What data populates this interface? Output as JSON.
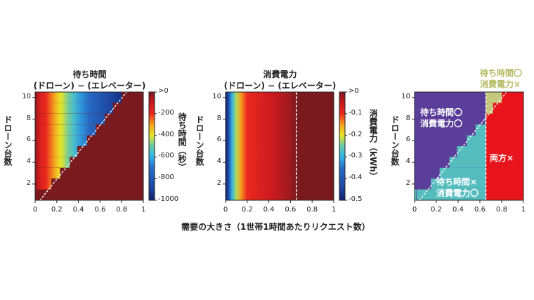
{
  "x_axis_common_label": "需要の大きさ（1世帯1時間あたりリクエスト数）",
  "chart_data": [
    {
      "id": "waiting-time",
      "type": "heatmap",
      "title_line1": "待ち時間",
      "title_line2": "(ドローン) − (エレベーター)",
      "ylabel": "ドローン台数",
      "xlabel": "需要の大きさ（1世帯1時間あたりリクエスト数）",
      "x_ticks": [
        "0",
        "0.2",
        "0.4",
        "0.6",
        "0.8",
        "1"
      ],
      "y_ticks": [
        "2",
        "4",
        "6",
        "8",
        "10"
      ],
      "xlim": [
        0,
        1
      ],
      "ylim": [
        0.5,
        10.5
      ],
      "colorbar": {
        "label": "待ち時間（秒）",
        "ticks": [
          ">0",
          "-200",
          "-400",
          "-600",
          "-800",
          "-1000"
        ],
        "range": [
          -1000,
          0
        ],
        "colormap": "jet"
      },
      "row_boundaries": {
        "description": "For each drone count n, demand x above which drone waiting time is worse (>0)",
        "drones": [
          1,
          2,
          3,
          4,
          5,
          6,
          7,
          8,
          9,
          10
        ],
        "x_threshold": [
          0.02,
          0.15,
          0.23,
          0.32,
          0.39,
          0.48,
          0.56,
          0.645,
          0.72,
          0.8
        ]
      },
      "dashed_line": {
        "from": [
          0.045,
          0.5
        ],
        "to": [
          0.845,
          10.5
        ]
      }
    },
    {
      "id": "power-consumption",
      "type": "heatmap",
      "title_line1": "消費電力",
      "title_line2": "(ドローン) − (エレベーター)",
      "ylabel": "ドローン台数",
      "xlabel": "需要の大きさ（1世帯1時間あたりリクエスト数）",
      "x_ticks": [
        "0",
        "0.2",
        "0.4",
        "0.6",
        "0.8",
        "1"
      ],
      "y_ticks": [
        "2",
        "4",
        "6",
        "8",
        "10"
      ],
      "xlim": [
        0,
        1
      ],
      "ylim": [
        0.5,
        10.5
      ],
      "colorbar": {
        "label": "消費電力（kWh）",
        "ticks": [
          ">0",
          "-0.1",
          "-0.2",
          "-0.3",
          "-0.4",
          "-0.5"
        ],
        "range": [
          -0.5,
          0
        ],
        "colormap": "jet"
      },
      "profile": {
        "description": "Power difference depends only on demand x (independent of drone count)",
        "x": [
          0.0,
          0.03,
          0.06,
          0.1,
          0.14,
          0.2,
          0.3,
          0.45,
          0.6,
          0.655,
          1.0
        ],
        "value": [
          -0.5,
          -0.42,
          -0.3,
          -0.22,
          -0.15,
          -0.1,
          -0.08,
          -0.05,
          -0.02,
          0.0,
          0.0
        ]
      },
      "dashed_vertical_x": 0.655
    },
    {
      "id": "combined-regions",
      "type": "heatmap",
      "ylabel": "ドローン台数",
      "x_ticks": [
        "0",
        "0.2",
        "0.4",
        "0.6",
        "0.8",
        "1"
      ],
      "y_ticks": [
        "2",
        "4",
        "6",
        "8",
        "10"
      ],
      "xlim": [
        0,
        1
      ],
      "ylim": [
        0.5,
        10.5
      ],
      "regions": [
        {
          "name": "both-good",
          "label_line1": "待ち時間〇",
          "label_line2": "消費電力〇",
          "color": "#5a3e9a"
        },
        {
          "name": "power-good",
          "label_line1": "待ち時間×",
          "label_line2": "消費電力〇",
          "color": "#56bdbf"
        },
        {
          "name": "wait-good",
          "label_line1": "待ち時間〇",
          "label_line2": "消費電力×",
          "color": "#c5c97e"
        },
        {
          "name": "both-bad",
          "label_line1": "両方×",
          "color": "#e8141c"
        }
      ],
      "vertical_threshold_x": 0.655,
      "dashed_line": {
        "from": [
          0.045,
          0.5
        ],
        "to": [
          0.845,
          10.5
        ]
      }
    }
  ],
  "colors": {
    "background": "#ffffff",
    "heat_dark_red": "#7b1a1e",
    "dashed_line": "#ffffff",
    "outside_label_green": "#b5ba63"
  }
}
